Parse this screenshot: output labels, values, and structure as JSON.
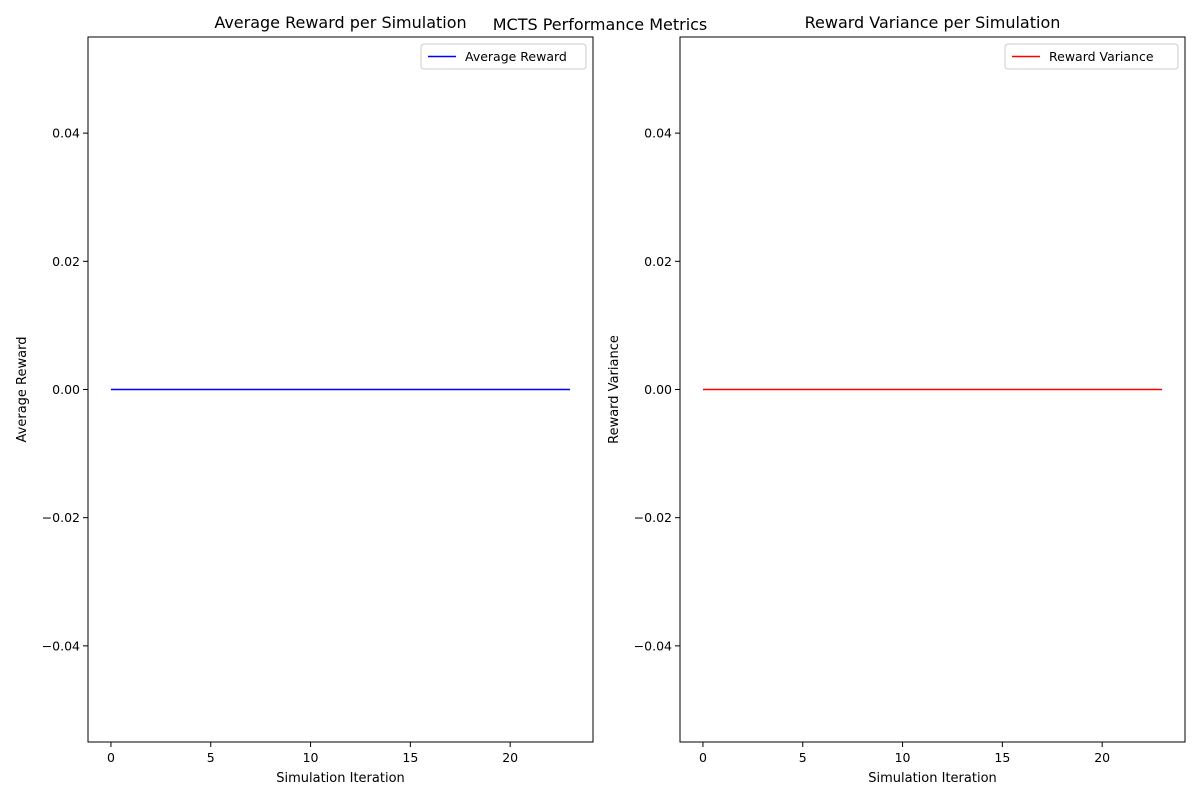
{
  "figure": {
    "suptitle": "MCTS Performance Metrics"
  },
  "chart_data": [
    {
      "type": "line",
      "title": "Average Reward per Simulation",
      "xlabel": "Simulation Iteration",
      "ylabel": "Average Reward",
      "xlim": [
        -1.15,
        24.15
      ],
      "ylim": [
        -0.055,
        0.055
      ],
      "xticks": [
        0,
        5,
        10,
        15,
        20
      ],
      "yticks": [
        -0.04,
        -0.02,
        0.0,
        0.02,
        0.04
      ],
      "ytick_labels": [
        "−0.04",
        "−0.02",
        "0.00",
        "0.02",
        "0.04"
      ],
      "grid": false,
      "legend_position": "top-right",
      "series": [
        {
          "name": "Average Reward",
          "color": "#0000ff",
          "x": [
            0,
            1,
            2,
            3,
            4,
            5,
            6,
            7,
            8,
            9,
            10,
            11,
            12,
            13,
            14,
            15,
            16,
            17,
            18,
            19,
            20,
            21,
            22,
            23
          ],
          "y": [
            0,
            0,
            0,
            0,
            0,
            0,
            0,
            0,
            0,
            0,
            0,
            0,
            0,
            0,
            0,
            0,
            0,
            0,
            0,
            0,
            0,
            0,
            0,
            0
          ]
        }
      ]
    },
    {
      "type": "line",
      "title": "Reward Variance per Simulation",
      "xlabel": "Simulation Iteration",
      "ylabel": "Reward Variance",
      "xlim": [
        -1.15,
        24.15
      ],
      "ylim": [
        -0.055,
        0.055
      ],
      "xticks": [
        0,
        5,
        10,
        15,
        20
      ],
      "yticks": [
        -0.04,
        -0.02,
        0.0,
        0.02,
        0.04
      ],
      "ytick_labels": [
        "−0.04",
        "−0.02",
        "0.00",
        "0.02",
        "0.04"
      ],
      "grid": false,
      "legend_position": "top-right",
      "series": [
        {
          "name": "Reward Variance",
          "color": "#ff0000",
          "x": [
            0,
            1,
            2,
            3,
            4,
            5,
            6,
            7,
            8,
            9,
            10,
            11,
            12,
            13,
            14,
            15,
            16,
            17,
            18,
            19,
            20,
            21,
            22,
            23
          ],
          "y": [
            0,
            0,
            0,
            0,
            0,
            0,
            0,
            0,
            0,
            0,
            0,
            0,
            0,
            0,
            0,
            0,
            0,
            0,
            0,
            0,
            0,
            0,
            0,
            0
          ]
        }
      ]
    }
  ]
}
